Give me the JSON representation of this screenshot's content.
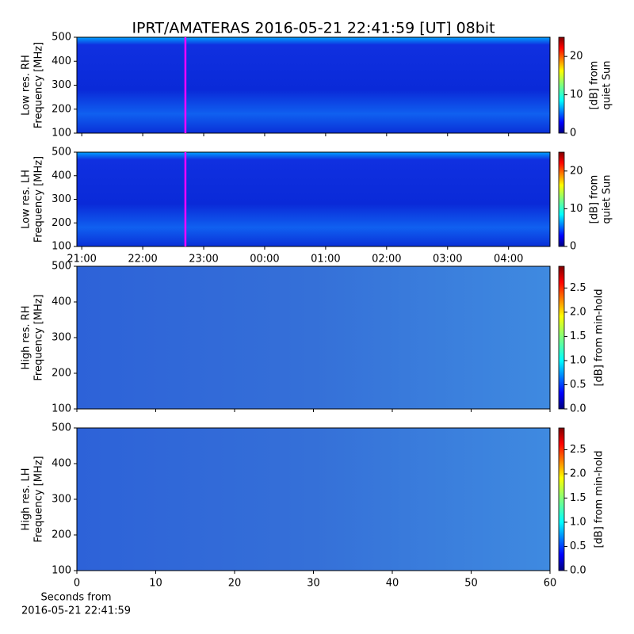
{
  "chart_data": [
    {
      "type": "spectrogram",
      "title": "IPRT/AMATERAS 2016-05-21 22:41:59 [UT]   08bit",
      "ylabel": [
        "Low res. RH",
        "Frequency [MHz]"
      ],
      "ylim": [
        100,
        500
      ],
      "yticks": [
        100,
        200,
        300,
        400,
        500
      ],
      "xlim": [
        20.92,
        28.68
      ],
      "xticks": [
        {
          "value": 21,
          "label": "21:00"
        },
        {
          "value": 22,
          "label": "22:00"
        },
        {
          "value": 23,
          "label": "23:00"
        },
        {
          "value": 24,
          "label": "00:00"
        },
        {
          "value": 25,
          "label": "01:00"
        },
        {
          "value": 26,
          "label": "02:00"
        },
        {
          "value": 27,
          "label": "03:00"
        },
        {
          "value": 28,
          "label": "04:00"
        }
      ],
      "xtick_labels": false,
      "marker_x": 22.7,
      "marker_color": "#ff00ff",
      "clim": [
        0,
        25
      ],
      "cticks": [
        0,
        10,
        20
      ],
      "clabel": [
        "[dB] from",
        "quiet Sun"
      ]
    },
    {
      "type": "spectrogram",
      "ylabel": [
        "Low res. LH",
        "Frequency [MHz]"
      ],
      "ylim": [
        100,
        500
      ],
      "yticks": [
        100,
        200,
        300,
        400,
        500
      ],
      "xlim": [
        20.92,
        28.68
      ],
      "xticks": [
        {
          "value": 21,
          "label": "21:00"
        },
        {
          "value": 22,
          "label": "22:00"
        },
        {
          "value": 23,
          "label": "23:00"
        },
        {
          "value": 24,
          "label": "00:00"
        },
        {
          "value": 25,
          "label": "01:00"
        },
        {
          "value": 26,
          "label": "02:00"
        },
        {
          "value": 27,
          "label": "03:00"
        },
        {
          "value": 28,
          "label": "04:00"
        }
      ],
      "xtick_labels": true,
      "marker_x": 22.7,
      "marker_color": "#ff00ff",
      "clim": [
        0,
        25
      ],
      "cticks": [
        0,
        10,
        20
      ],
      "clabel": [
        "[dB] from",
        "quiet Sun"
      ]
    },
    {
      "type": "spectrogram",
      "ylabel": [
        "High res. RH",
        "Frequency [MHz]"
      ],
      "ylim": [
        100,
        500
      ],
      "yticks": [
        100,
        200,
        300,
        400,
        500
      ],
      "xlim": [
        0,
        60
      ],
      "xticks": [
        0,
        10,
        20,
        30,
        40,
        50,
        60
      ],
      "xtick_labels": false,
      "clim": [
        0,
        2.95
      ],
      "cticks": [
        {
          "value": 0,
          "label": "0.0"
        },
        0.5,
        {
          "value": 1,
          "label": "1.0"
        },
        1.5,
        {
          "value": 2,
          "label": "2.0"
        },
        2.5
      ],
      "clabel": [
        "[dB] from min-hold"
      ]
    },
    {
      "type": "spectrogram",
      "ylabel": [
        "High res. LH",
        "Frequency [MHz]"
      ],
      "ylim": [
        100,
        500
      ],
      "yticks": [
        100,
        200,
        300,
        400,
        500
      ],
      "xlim": [
        0,
        60
      ],
      "xticks": [
        0,
        10,
        20,
        30,
        40,
        50,
        60
      ],
      "xtick_labels": true,
      "xlabel": [
        "Seconds from",
        "2016-05-21 22:41:59"
      ],
      "clim": [
        0,
        2.95
      ],
      "cticks": [
        {
          "value": 0,
          "label": "0.0"
        },
        0.5,
        {
          "value": 1,
          "label": "1.0"
        },
        1.5,
        {
          "value": 2,
          "label": "2.0"
        },
        2.5
      ],
      "clabel": [
        "[dB] from min-hold"
      ]
    }
  ]
}
